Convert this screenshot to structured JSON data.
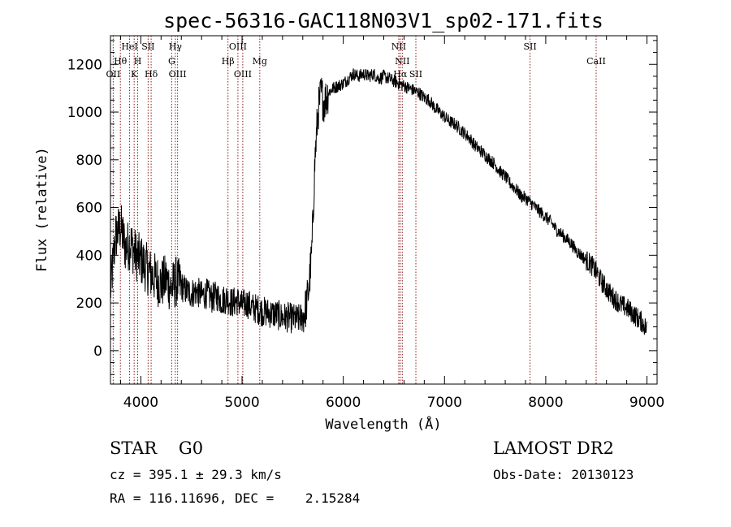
{
  "chart_data": {
    "type": "line",
    "title": "spec-56316-GAC118N03V1_sp02-171.fits",
    "xlabel": "Wavelength (Å)",
    "ylabel": "Flux (relative)",
    "xlim": [
      3700,
      9100
    ],
    "ylim": [
      -140,
      1320
    ],
    "xticks": [
      4000,
      5000,
      6000,
      7000,
      8000,
      9000
    ],
    "yticks": [
      0,
      200,
      400,
      600,
      800,
      1000,
      1200
    ],
    "grid": false,
    "legend": "none",
    "line_color": "#000000",
    "marker_color": "#8b1a1a",
    "spectrum": {
      "x": [
        3700,
        3750,
        3800,
        3850,
        3900,
        3950,
        4000,
        4050,
        4100,
        4150,
        4200,
        4250,
        4300,
        4350,
        4400,
        4450,
        4500,
        4550,
        4600,
        4650,
        4700,
        4750,
        4800,
        4850,
        4900,
        4950,
        5000,
        5050,
        5100,
        5150,
        5200,
        5250,
        5300,
        5350,
        5400,
        5450,
        5500,
        5550,
        5600,
        5630,
        5660,
        5690,
        5720,
        5750,
        5780,
        5810,
        5850,
        5900,
        5950,
        6000,
        6050,
        6100,
        6150,
        6200,
        6250,
        6300,
        6350,
        6400,
        6450,
        6500,
        6550,
        6600,
        6650,
        6700,
        6750,
        6800,
        6850,
        6900,
        6950,
        7000,
        7050,
        7100,
        7150,
        7200,
        7250,
        7300,
        7350,
        7400,
        7450,
        7500,
        7550,
        7600,
        7650,
        7700,
        7750,
        7800,
        7850,
        7900,
        7950,
        8000,
        8050,
        8100,
        8150,
        8200,
        8250,
        8300,
        8350,
        8400,
        8450,
        8500,
        8550,
        8600,
        8650,
        8700,
        8750,
        8800,
        8850,
        8900,
        8950,
        9000
      ],
      "y": [
        250,
        480,
        520,
        430,
        450,
        400,
        380,
        350,
        320,
        300,
        280,
        300,
        260,
        290,
        270,
        250,
        240,
        250,
        230,
        240,
        220,
        230,
        210,
        220,
        200,
        210,
        190,
        200,
        180,
        175,
        165,
        160,
        155,
        150,
        140,
        140,
        135,
        130,
        140,
        180,
        260,
        420,
        800,
        1000,
        1080,
        1040,
        1080,
        1100,
        1110,
        1120,
        1140,
        1160,
        1150,
        1160,
        1150,
        1160,
        1140,
        1150,
        1140,
        1130,
        1120,
        1110,
        1100,
        1090,
        1080,
        1060,
        1050,
        1020,
        1000,
        980,
        960,
        950,
        930,
        910,
        890,
        860,
        840,
        820,
        800,
        780,
        750,
        730,
        700,
        680,
        650,
        640,
        620,
        600,
        580,
        560,
        540,
        510,
        490,
        470,
        450,
        420,
        400,
        380,
        360,
        330,
        290,
        260,
        230,
        210,
        190,
        180,
        160,
        140,
        120,
        90
      ]
    },
    "line_markers": [
      {
        "label": "OII",
        "x": 3727,
        "row": 3
      },
      {
        "label": "Hθ",
        "x": 3798,
        "row": 2
      },
      {
        "label": "HeI",
        "x": 3889,
        "row": 1
      },
      {
        "label": "K",
        "x": 3934,
        "row": 3
      },
      {
        "label": "H",
        "x": 3969,
        "row": 2
      },
      {
        "label": "SII",
        "x": 4072,
        "row": 1
      },
      {
        "label": "Hδ",
        "x": 4102,
        "row": 3
      },
      {
        "label": "Hγ",
        "x": 4341,
        "row": 1
      },
      {
        "label": "G",
        "x": 4305,
        "row": 2
      },
      {
        "label": "OIII",
        "x": 4363,
        "row": 3
      },
      {
        "label": "Hβ",
        "x": 4861,
        "row": 2
      },
      {
        "label": "OIII",
        "x": 4959,
        "row": 1
      },
      {
        "label": "OIII",
        "x": 5007,
        "row": 3
      },
      {
        "label": "Mg",
        "x": 5175,
        "row": 2
      },
      {
        "label": "NII",
        "x": 6548,
        "row": 1
      },
      {
        "label": "NII",
        "x": 6583,
        "row": 2
      },
      {
        "label": "Hα",
        "x": 6563,
        "row": 3
      },
      {
        "label": "SII",
        "x": 6717,
        "row": 3
      },
      {
        "label": "SII",
        "x": 7845,
        "row": 1
      },
      {
        "label": "CaII",
        "x": 8498,
        "row": 2
      }
    ]
  },
  "info": {
    "class_line": "STAR    G0",
    "cz_line": "cz = 395.1 ± 29.3 km/s",
    "coords_line": "RA = 116.11696, DEC =    2.15284",
    "survey": "LAMOST DR2",
    "obs_date": "Obs-Date: 20130123"
  }
}
